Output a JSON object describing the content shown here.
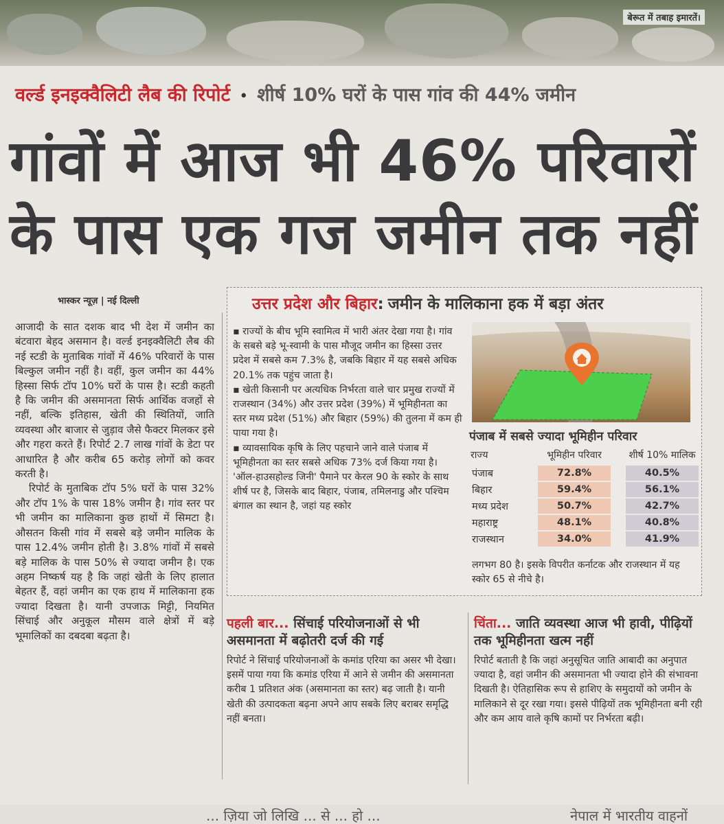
{
  "photo": {
    "caption": "बेरूत में तबाह इमारतें।"
  },
  "kicker": {
    "red": "वर्ल्ड इनइक्वैलिटी लैब की रिपोर्ट",
    "bullet": "•",
    "grey": "शीर्ष 10% घरों के पास गांव की 44% जमीन"
  },
  "headline": {
    "line1": "गांवों में आज भी 46% परिवारों",
    "line2": "के पास एक गज जमीन तक नहीं"
  },
  "byline": "भास्कर न्यूज़ | नई दिल्ली",
  "left_column": [
    "आजादी के सात दशक बाद भी देश में जमीन का बंटवारा बेहद असमान है। वर्ल्ड इनइक्वैलिटी लैब की नई स्टडी के मुताबिक गांवों में 46% परिवारों के पास बिल्कुल जमीन नहीं है। वहीं, कुल जमीन का 44% हिस्सा सिर्फ टॉप 10% घरों के पास है। स्टडी कहती है कि जमीन की असमानता सिर्फ आर्थिक वजहों से नहीं, बल्कि इतिहास, खेती की स्थितियों, जाति व्यवस्था और बाजार से जुड़ाव जैसे फैक्टर मिलकर इसे और गहरा करते हैं। रिपोर्ट 2.7 लाख गांवों के डेटा पर आधारित है और करीब 65 करोड़ लोगों को कवर करती है।",
    "रिपोर्ट के मुताबिक टॉप 5% घरों के पास 32% और टॉप 1% के पास 18% जमीन है। गांव स्तर पर भी जमीन का मालिकाना कुछ हाथों में सिमटा है। औसतन किसी गांव में सबसे बड़े जमीन मालिक के पास 12.4% जमीन होती है। 3.8% गांवों में सबसे बड़े मालिक के पास 50% से ज्यादा जमीन है। एक अहम निष्कर्ष यह है कि जहां खेती के लिए हालात बेहतर हैं, वहां जमीन का एक हाथ में मालिकाना हक ज्यादा दिखता है। यानी उपजाऊ मिट्टी, नियमित सिंचाई और अनुकूल मौसम वाले क्षेत्रों में बड़े भूमालिकों का दबदबा बढ़ता है।"
  ],
  "box": {
    "title_red": "उत्तर प्रदेश और बिहार",
    "title_colon": ":",
    "title_grey": "जमीन के मालिकाना हक में बड़ा अंतर",
    "bullets": [
      "▪ राज्यों के बीच भूमि स्वामित्व में भारी अंतर देखा गया है। गांव के सबसे बड़े भू-स्वामी के पास मौजूद जमीन का हिस्सा उत्तर प्रदेश में सबसे कम 7.3% है, जबकि बिहार में यह सबसे अधिक 20.1% तक पहुंच जाता है।",
      "▪ खेती किसानी पर अत्यधिक निर्भरता वाले चार प्रमुख राज्यों में राजस्थान (34%) और उत्तर प्रदेश (39%) में भूमिहीनता का स्तर मध्य प्रदेश (51%) और बिहार (59%) की तुलना में कम ही पाया गया है।",
      "▪ व्यावसायिक कृषि के लिए पहचाने जाने वाले पंजाब में भूमिहीनता का स्तर सबसे अधिक 73% दर्ज किया गया है। 'ऑल-हाउसहोल्ड जिनी' पैमाने पर केरल 90 के स्कोर के साथ शीर्ष पर है, जिसके बाद बिहार, पंजाब, तमिलनाडु और पश्चिम बंगाल का स्थान है, जहां यह स्कोर"
    ],
    "tail": "लगभग 80 है। इसके विपरीत कर्नाटक और राजस्थान में यह स्कोर 65 से नीचे है।",
    "table": {
      "title": "पंजाब में सबसे ज्यादा भूमिहीन परिवार",
      "headers": [
        "राज्य",
        "भूमिहीन परिवार",
        "शीर्ष 10% मालिक"
      ],
      "rows": [
        {
          "state": "पंजाब",
          "landless": "72.8%",
          "top10": "40.5%"
        },
        {
          "state": "बिहार",
          "landless": "59.4%",
          "top10": "56.1%"
        },
        {
          "state": "मध्य प्रदेश",
          "landless": "50.7%",
          "top10": "42.7%"
        },
        {
          "state": "महाराष्ट्र",
          "landless": "48.1%",
          "top10": "40.8%"
        },
        {
          "state": "राजस्थान",
          "landless": "34.0%",
          "top10": "41.9%"
        }
      ]
    }
  },
  "sections": {
    "first": {
      "red": "पहली बार...",
      "title": "सिंचाई परियोजनाओं से भी असमानता में बढ़ोतरी दर्ज की गई",
      "body": "रिपोर्ट ने सिंचाई परियोजनाओं के कमांड एरिया का असर भी देखा। इसमें पाया गया कि कमांड एरिया में आने से जमीन की असमानता करीब 1 प्रतिशत अंक (असमानता का स्तर) बढ़ जाती है। यानी खेती की उत्पादकता बढ़ना अपने आप सबके लिए बराबर समृद्धि नहीं बनता।"
    },
    "second": {
      "red": "चिंता...",
      "title": "जाति व्यवस्था आज भी हावी, पीढ़ियों तक भूमिहीनता खत्म नहीं",
      "body": "रिपोर्ट बताती है कि जहां अनुसूचित जाति आबादी का अनुपात ज्यादा है, वहां जमीन की असमानता भी ज्यादा होने की संभावना दिखती है। ऐतिहासिक रूप से हाशिए के समुदायों को जमीन के मालिकाने से दूर रखा गया। इससे पीढ़ियों तक भूमिहीनता बनी रही और कम आय वाले कृषि कामों पर निर्भरता बढ़ी।"
    }
  },
  "bottom": {
    "left": "... ज़िया जो लिखि ... से ... हो ...",
    "right": "नेपाल में भारतीय वाहनों"
  },
  "colors": {
    "accent_red": "#c6282d",
    "headline_grey": "#3a3a3c",
    "landless_cell": "#efc9b3",
    "top10_cell": "#cfcdd3",
    "field_green": "#4ccf4c"
  }
}
